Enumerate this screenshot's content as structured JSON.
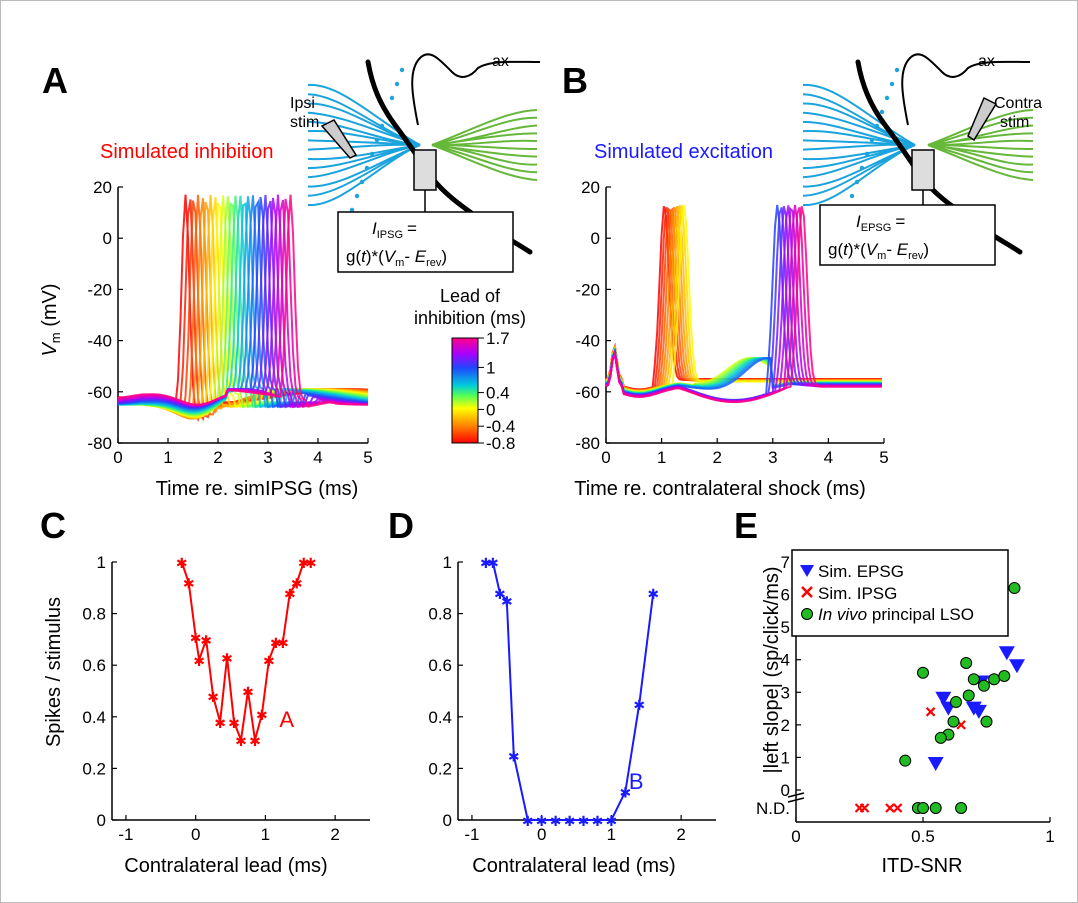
{
  "colors": {
    "inhibition": "#ff0000",
    "excitation": "#1a1aff",
    "dendrite_blue": "#1aa3dd",
    "dendrite_green": "#66b83a",
    "invivo_green": "#22bb22",
    "cell_body": "#000000"
  },
  "panelA": {
    "letter": "A",
    "sim_label": "Simulated inhibition",
    "stim_label1": "Ipsi",
    "stim_label2": "stim",
    "ax_label": "ax",
    "formula": {
      "I": "I",
      "sub": "IPSG",
      "eq": "=",
      "line2_a": "g(",
      "t": "t",
      "line2_b": ")*(",
      "V": "V",
      "m": "m",
      "minus": "- ",
      "E": "E",
      "rev": "rev",
      "close": ")"
    },
    "ylabel_v": "V",
    "ylabel_m": "m",
    "ylabel_unit": " (mV)",
    "xlabel": "Time re. simIPSG (ms)",
    "xticks": [
      "0",
      "1",
      "2",
      "3",
      "4",
      "5"
    ],
    "yticks": [
      "20",
      "0",
      "-20",
      "-40",
      "-60",
      "-80"
    ]
  },
  "panelB": {
    "letter": "B",
    "sim_label": "Simulated excitation",
    "stim_label1": "Contra",
    "stim_label2": "stim",
    "ax_label": "ax",
    "formula": {
      "I": "I",
      "sub": "EPSG",
      "eq": "=",
      "line2_a": "g(",
      "t": "t",
      "line2_b": ")*(",
      "V": "V",
      "m": "m",
      "minus": "- ",
      "E": "E",
      "rev": "rev",
      "close": ")"
    },
    "xlabel": "Time re. contralateral shock (ms)",
    "xticks": [
      "0",
      "1",
      "2",
      "3",
      "4",
      "5"
    ],
    "yticks": [
      "20",
      "0",
      "-20",
      "-40",
      "-60",
      "-80"
    ]
  },
  "colorbar": {
    "title1": "Lead of",
    "title2": "inhibition (ms)",
    "ticks": [
      "1.7",
      "1",
      "0.4",
      "0",
      "-0.4",
      "-0.8"
    ]
  },
  "panelC": {
    "letter": "C",
    "ylabel": "Spikes / stimulus",
    "xlabel": "Contralateral lead (ms)",
    "annot": "A",
    "xticks": [
      "-1",
      "0",
      "1",
      "2"
    ],
    "yticks": [
      "1",
      "0.8",
      "0.6",
      "0.4",
      "0.2",
      "0"
    ]
  },
  "panelD": {
    "letter": "D",
    "xlabel": "Contralateral lead (ms)",
    "annot": "B",
    "xticks": [
      "-1",
      "0",
      "1",
      "2"
    ],
    "yticks": [
      "1",
      "0.8",
      "0.6",
      "0.4",
      "0.2",
      "0"
    ]
  },
  "panelE": {
    "letter": "E",
    "ylabel": "|left slope| (sp/click/ms)",
    "xlabel": "ITD-SNR",
    "xticks": [
      "0",
      "0.5",
      "1"
    ],
    "yticks": [
      "7",
      "6",
      "5",
      "4",
      "3",
      "2",
      "1",
      "0"
    ],
    "nd_label": "N.D.",
    "legend": {
      "epsg": "Sim. EPSG",
      "ipsg": "Sim. IPSG",
      "invivo_italic": "In vivo",
      "invivo_rest": " principal LSO"
    }
  },
  "chart_data": [
    {
      "type": "line",
      "panel": "A",
      "xlabel": "Time re. simIPSG (ms)",
      "ylabel": "Vm (mV)",
      "xlim": [
        0,
        5
      ],
      "ylim": [
        -80,
        20
      ],
      "colorbar": {
        "label": "Lead of inhibition (ms)",
        "range": [
          -0.8,
          1.7
        ],
        "ticks": [
          -0.8,
          -0.4,
          0,
          0.4,
          1,
          1.7
        ]
      },
      "series_description_values": {
        "spike_peak_mV": 17,
        "resting_mV": -62,
        "spike_time_range_ms": [
          1.2,
          3.3
        ]
      }
    },
    {
      "type": "line",
      "panel": "B",
      "xlabel": "Time re. contralateral shock (ms)",
      "ylabel": "Vm (mV)",
      "xlim": [
        0,
        5
      ],
      "ylim": [
        -80,
        20
      ],
      "series_description_values": {
        "spike_peak_mV": 13,
        "resting_mV": -55,
        "early_spike_time_range_ms": [
          0.9,
          1.3
        ],
        "late_spike_time_range_ms": [
          2.9,
          3.4
        ]
      }
    },
    {
      "type": "line",
      "panel": "C",
      "xlabel": "Contralateral lead (ms)",
      "ylabel": "Spikes / stimulus",
      "xlim": [
        -1.2,
        2.5
      ],
      "ylim": [
        0,
        1
      ],
      "series": [
        {
          "color": "#ff0000",
          "x": [
            -0.2,
            -0.1,
            0,
            0.05,
            0.15,
            0.25,
            0.35,
            0.45,
            0.55,
            0.65,
            0.75,
            0.85,
            0.95,
            1.05,
            1.15,
            1.25,
            1.35,
            1.45,
            1.55,
            1.65
          ],
          "y": [
            1.0,
            0.92,
            0.71,
            0.62,
            0.7,
            0.48,
            0.38,
            0.63,
            0.38,
            0.31,
            0.5,
            0.31,
            0.41,
            0.62,
            0.69,
            0.69,
            0.88,
            0.92,
            1.0,
            1.0
          ]
        }
      ]
    },
    {
      "type": "line",
      "panel": "D",
      "xlabel": "Contralateral lead (ms)",
      "xlim": [
        -1.2,
        2.5
      ],
      "ylim": [
        0,
        1
      ],
      "series": [
        {
          "color": "#1a1aff",
          "x": [
            -0.8,
            -0.7,
            -0.6,
            -0.5,
            -0.4,
            -0.2,
            0,
            0.2,
            0.4,
            0.6,
            0.8,
            1.0,
            1.2,
            1.4,
            1.6
          ],
          "y": [
            1.0,
            1.0,
            0.88,
            0.85,
            0.25,
            0,
            0,
            0,
            0,
            0,
            0,
            0,
            0.11,
            0.45,
            0.88
          ]
        }
      ]
    },
    {
      "type": "scatter",
      "panel": "E",
      "xlabel": "ITD-SNR",
      "ylabel": "|left slope| (sp/click/ms)",
      "xlim": [
        0,
        1
      ],
      "ylim": [
        0,
        7
      ],
      "nd_value_label": "N.D.",
      "series": [
        {
          "name": "Sim. EPSG",
          "marker": "triangle-down",
          "color": "#1a1aff",
          "x": [
            0.58,
            0.6,
            0.7,
            0.72,
            0.73,
            0.83,
            0.87,
            0.55
          ],
          "y": [
            2.8,
            2.5,
            2.5,
            2.4,
            3.3,
            4.2,
            3.8,
            0.8
          ],
          "nd": [
            false,
            false,
            false,
            false,
            false,
            false,
            false,
            false
          ]
        },
        {
          "name": "Sim. IPSG",
          "marker": "x",
          "color": "#ff0000",
          "x": [
            0.53,
            0.65,
            0.25,
            0.27,
            0.37,
            0.4
          ],
          "y": [
            2.4,
            2.0,
            null,
            null,
            null,
            null
          ],
          "nd": [
            false,
            false,
            true,
            true,
            true,
            true
          ]
        },
        {
          "name": "In vivo principal LSO",
          "marker": "circle",
          "color": "#22bb22",
          "x": [
            0.86,
            0.5,
            0.67,
            0.7,
            0.63,
            0.68,
            0.6,
            0.62,
            0.75,
            0.78,
            0.82,
            0.43,
            0.57,
            0.48,
            0.5,
            0.55,
            0.65,
            0.74
          ],
          "y": [
            6.2,
            3.6,
            3.9,
            3.4,
            2.7,
            2.9,
            1.7,
            2.1,
            2.1,
            3.4,
            3.5,
            0.9,
            1.6,
            null,
            null,
            null,
            null,
            3.2
          ],
          "nd": [
            false,
            false,
            false,
            false,
            false,
            false,
            false,
            false,
            false,
            false,
            false,
            false,
            false,
            true,
            true,
            true,
            true,
            false
          ]
        }
      ]
    }
  ]
}
